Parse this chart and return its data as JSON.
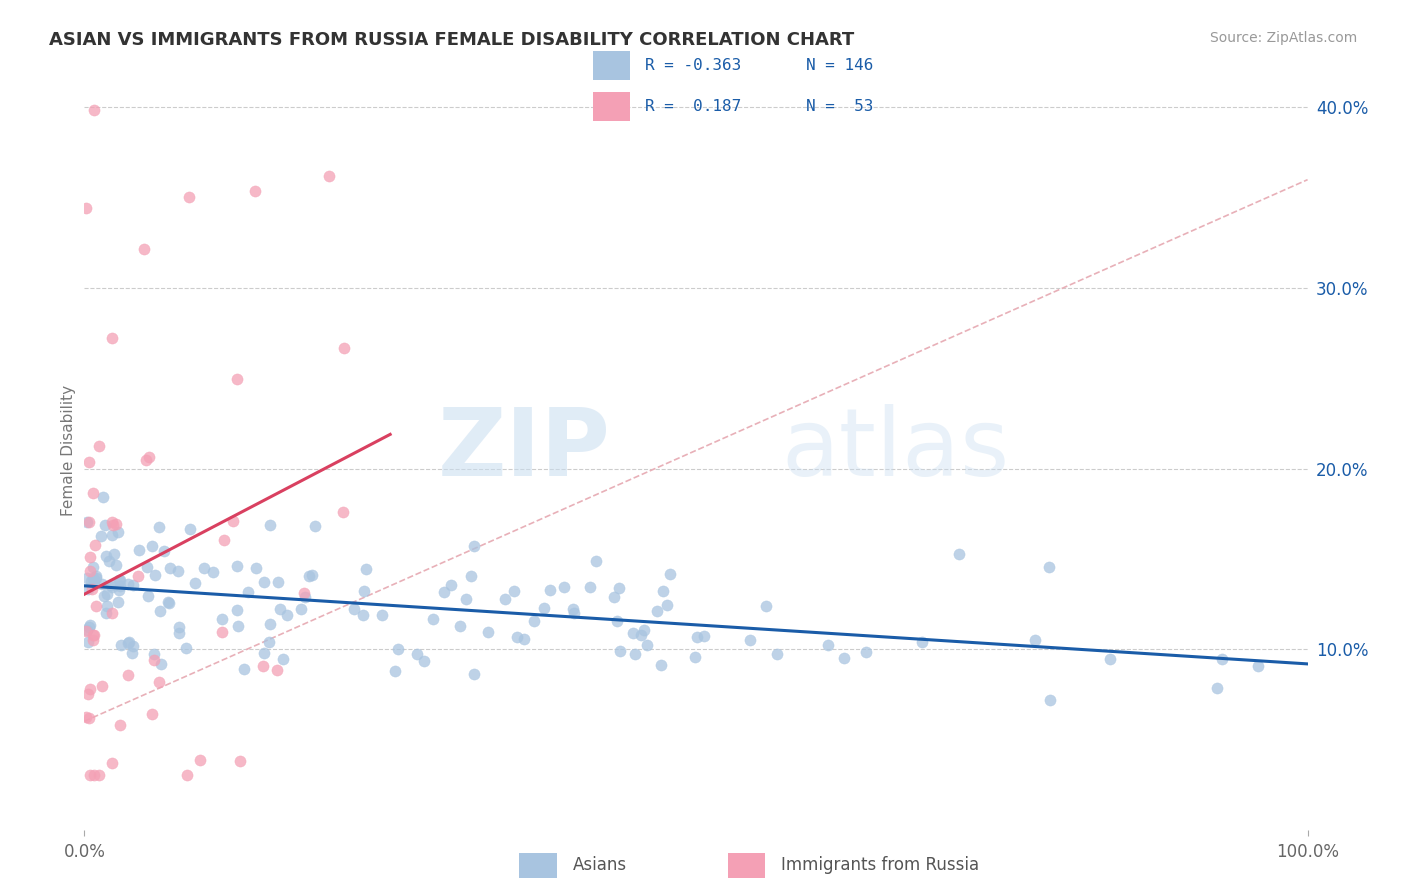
{
  "title": "ASIAN VS IMMIGRANTS FROM RUSSIA FEMALE DISABILITY CORRELATION CHART",
  "source": "Source: ZipAtlas.com",
  "ylabel_label": "Female Disability",
  "xlim": [
    0.0,
    1.0
  ],
  "ylim": [
    0.0,
    0.42
  ],
  "asian_R": -0.363,
  "asian_N": 146,
  "russia_R": 0.187,
  "russia_N": 53,
  "blue_color": "#a8c4e0",
  "pink_color": "#f4a0b5",
  "blue_line_color": "#1a5ca8",
  "pink_line_color": "#d94060",
  "watermark_zip": "ZIP",
  "watermark_atlas": "atlas",
  "legend_text_color": "#1a5ca8",
  "background_color": "#ffffff",
  "grid_color": "#cccccc",
  "right_yticks": [
    0.1,
    0.2,
    0.3,
    0.4
  ],
  "right_yticklabels": [
    "10.0%",
    "20.0%",
    "30.0%",
    "40.0%"
  ]
}
